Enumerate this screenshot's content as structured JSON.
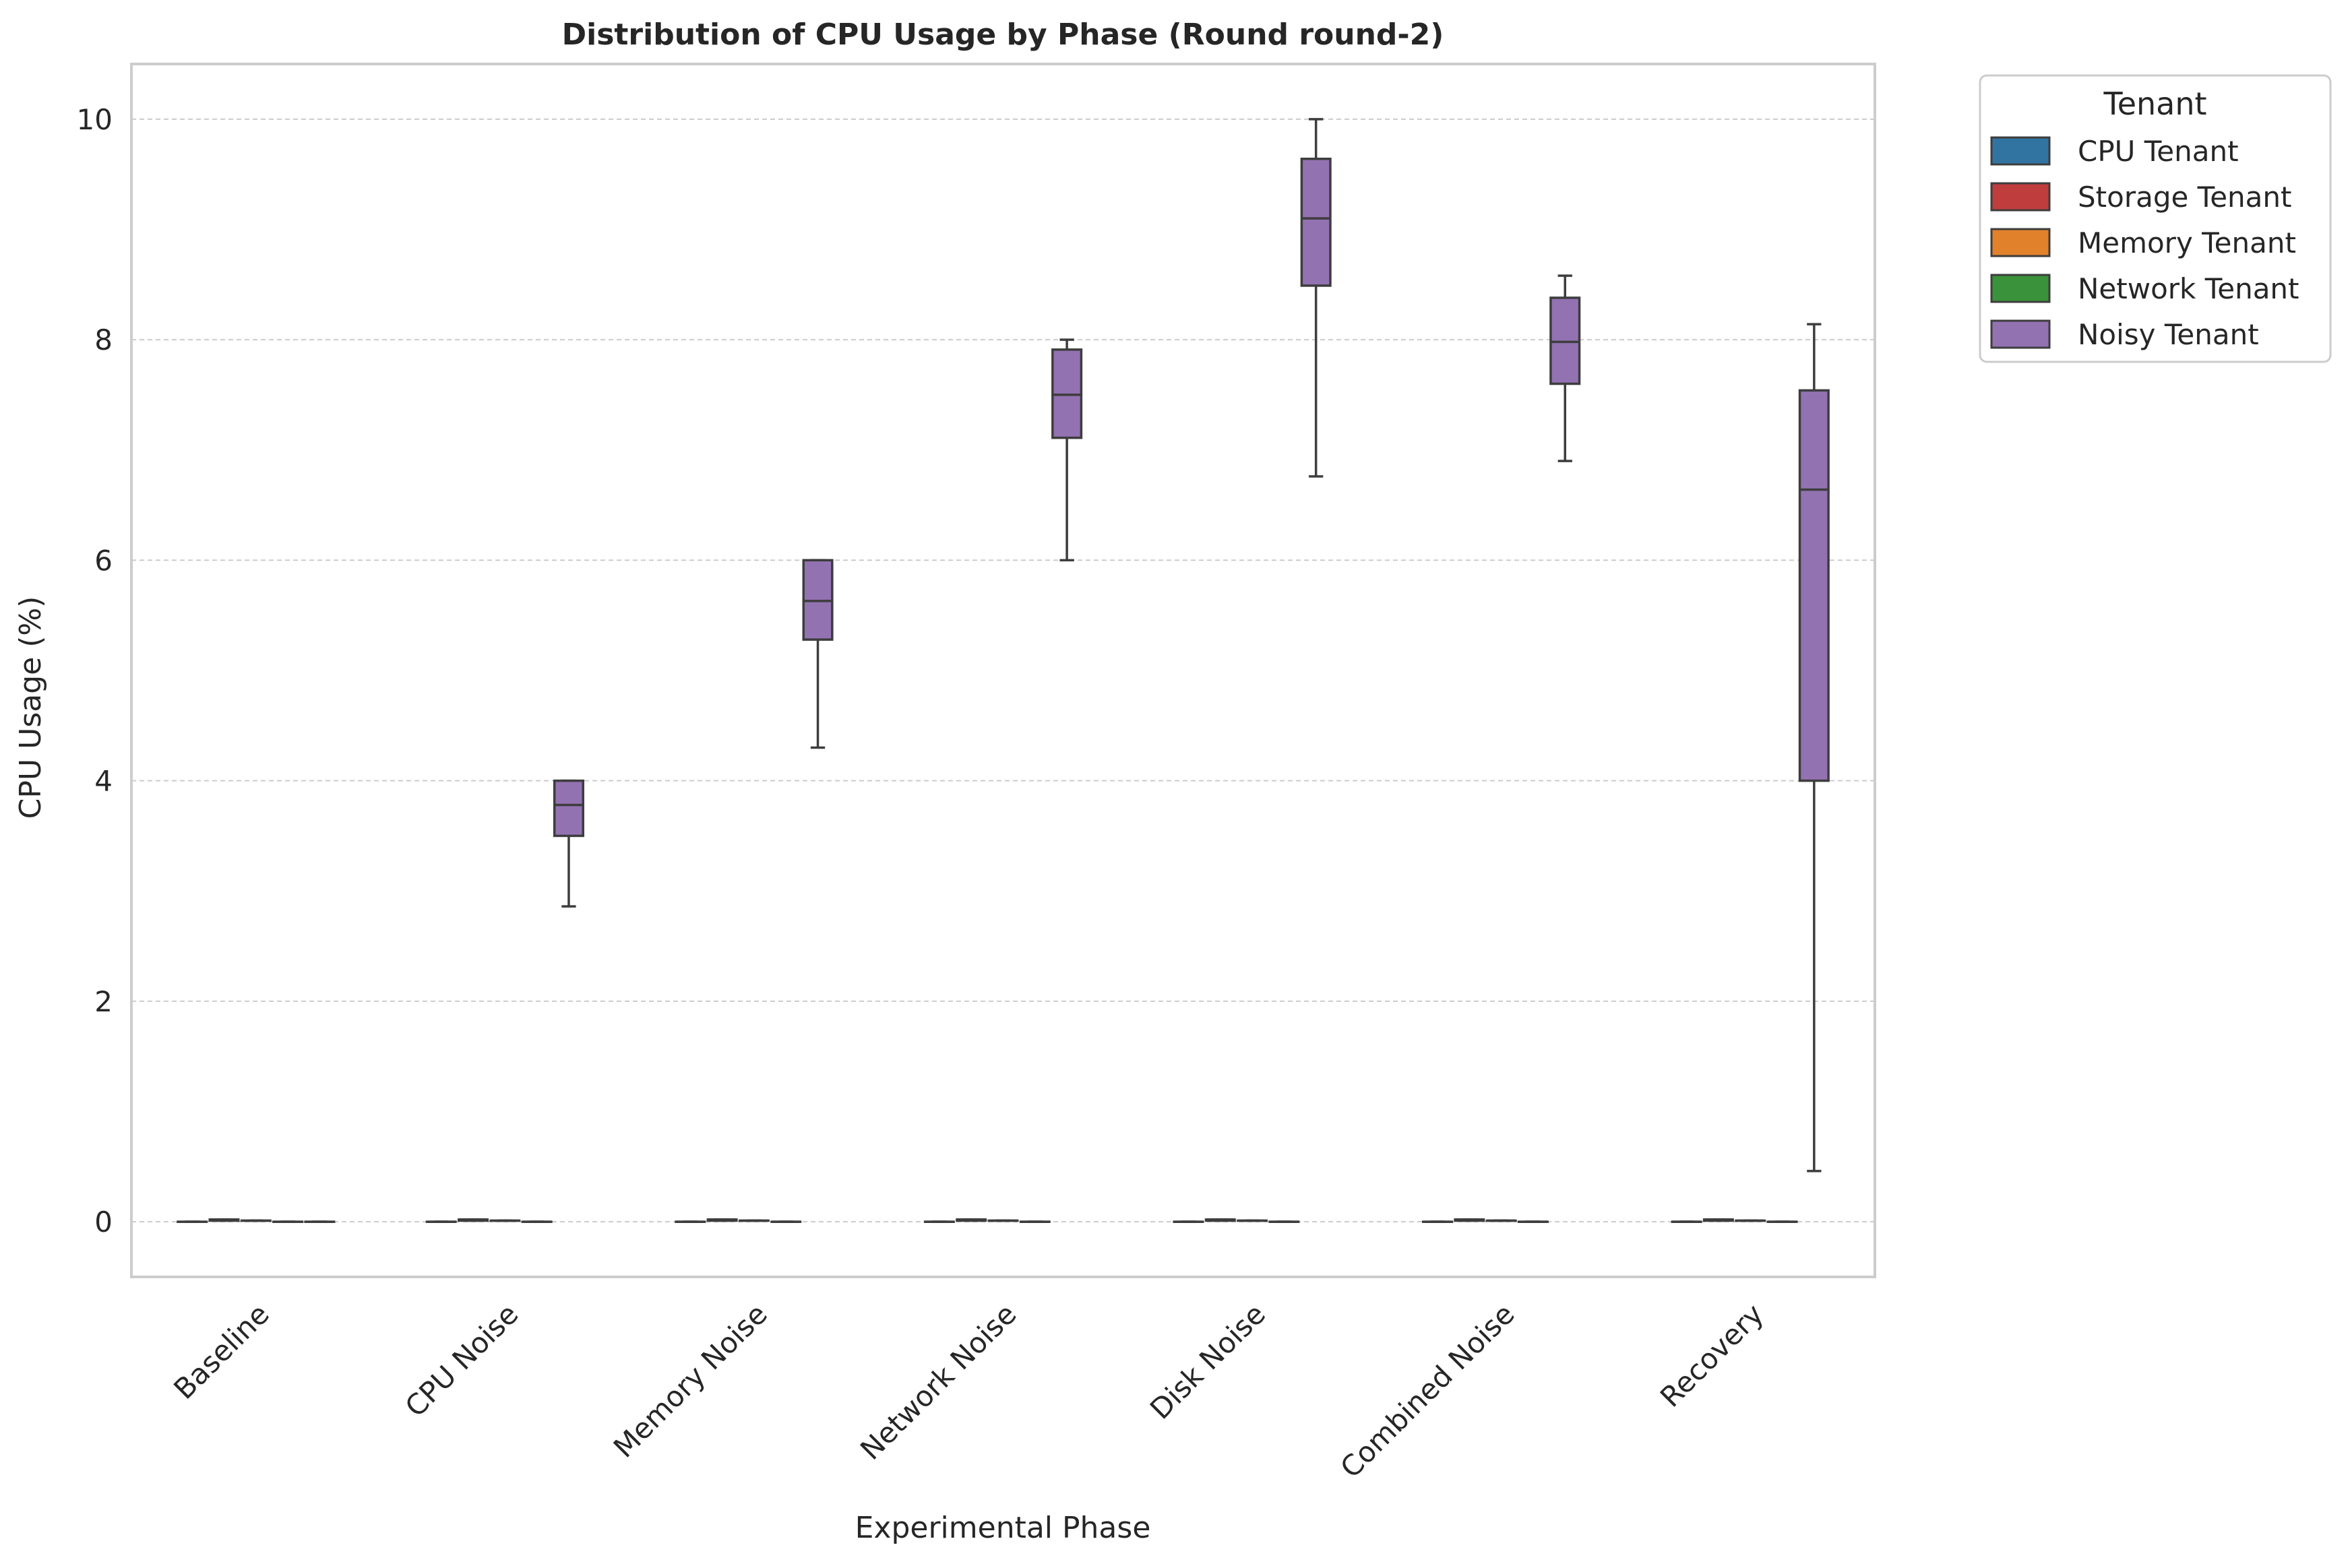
{
  "chart_data": {
    "type": "box",
    "title": "Distribution of CPU Usage by Phase (Round round-2)",
    "xlabel": "Experimental Phase",
    "ylabel": "CPU Usage (%)",
    "ylim": [
      -0.5,
      10.5
    ],
    "yticks": [
      0,
      2,
      4,
      6,
      8,
      10
    ],
    "grid": "y-dashed",
    "categories": [
      "Baseline",
      "CPU Noise",
      "Memory Noise",
      "Network Noise",
      "Disk Noise",
      "Combined Noise",
      "Recovery"
    ],
    "legend": {
      "title": "Tenant",
      "placement": "outside-top-right"
    },
    "series": [
      {
        "name": "CPU Tenant",
        "color": "#3274a1",
        "boxes": [
          [
            0,
            0,
            0,
            0,
            0
          ],
          [
            0,
            0,
            0,
            0,
            0
          ],
          [
            0,
            0,
            0,
            0,
            0
          ],
          [
            0,
            0,
            0,
            0,
            0
          ],
          [
            0,
            0,
            0,
            0,
            0
          ],
          [
            0,
            0,
            0,
            0,
            0
          ],
          [
            0,
            0,
            0,
            0,
            0
          ]
        ]
      },
      {
        "name": "Storage Tenant",
        "color": "#c03d3e",
        "boxes": [
          [
            0.01,
            0.01,
            0.02,
            0.02,
            0.02
          ],
          [
            0.01,
            0.01,
            0.02,
            0.02,
            0.02
          ],
          [
            0.01,
            0.01,
            0.02,
            0.02,
            0.02
          ],
          [
            0.01,
            0.01,
            0.02,
            0.02,
            0.02
          ],
          [
            0.01,
            0.01,
            0.02,
            0.02,
            0.02
          ],
          [
            0.01,
            0.01,
            0.02,
            0.02,
            0.02
          ],
          [
            0.01,
            0.01,
            0.02,
            0.02,
            0.02
          ]
        ]
      },
      {
        "name": "Memory Tenant",
        "color": "#e1812c",
        "boxes": [
          [
            0.01,
            0.01,
            0.01,
            0.01,
            0.01
          ],
          [
            0.01,
            0.01,
            0.01,
            0.01,
            0.01
          ],
          [
            0.01,
            0.01,
            0.01,
            0.01,
            0.01
          ],
          [
            0.01,
            0.01,
            0.01,
            0.01,
            0.01
          ],
          [
            0.01,
            0.01,
            0.01,
            0.01,
            0.01
          ],
          [
            0.01,
            0.01,
            0.01,
            0.01,
            0.01
          ],
          [
            0.01,
            0.01,
            0.01,
            0.01,
            0.01
          ]
        ]
      },
      {
        "name": "Network Tenant",
        "color": "#3a923a",
        "boxes": [
          [
            0,
            0,
            0,
            0,
            0
          ],
          [
            0,
            0,
            0,
            0,
            0
          ],
          [
            0,
            0,
            0,
            0,
            0
          ],
          [
            0,
            0,
            0,
            0,
            0
          ],
          [
            0,
            0,
            0,
            0,
            0
          ],
          [
            0,
            0,
            0,
            0,
            0
          ],
          [
            0,
            0,
            0,
            0,
            0
          ]
        ]
      },
      {
        "name": "Noisy Tenant",
        "color": "#9372b2",
        "boxes": [
          [
            0,
            0,
            0,
            0,
            0
          ],
          [
            2.86,
            3.5,
            3.78,
            4.0,
            4.0
          ],
          [
            4.3,
            5.28,
            5.63,
            6.0,
            6.0
          ],
          [
            6.0,
            7.11,
            7.5,
            7.91,
            8.0
          ],
          [
            6.76,
            8.49,
            9.1,
            9.64,
            10.0
          ],
          [
            6.9,
            7.6,
            7.98,
            8.38,
            8.58
          ],
          [
            0.46,
            4.0,
            6.64,
            7.54,
            8.14
          ]
        ]
      }
    ]
  }
}
